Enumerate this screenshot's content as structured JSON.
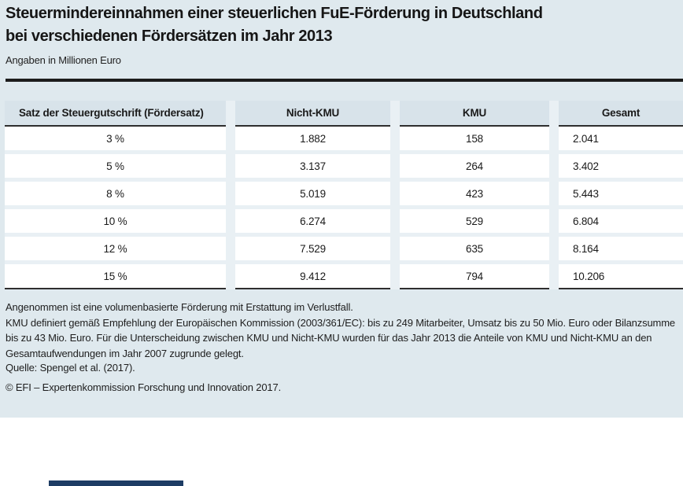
{
  "title": {
    "line1": "Steuermindereinnahmen einer steuerlichen FuE-Förderung in Deutschland",
    "line2": "bei verschiedenen Fördersätzen im Jahr 2013"
  },
  "subtitle": "Angaben in Millionen Euro",
  "chart_data": {
    "type": "table",
    "title": "Steuermindereinnahmen einer steuerlichen FuE-Förderung in Deutschland bei verschiedenen Fördersätzen im Jahr 2013",
    "subtitle": "Angaben in Millionen Euro",
    "units": "Millionen Euro",
    "columns": [
      "Satz der Steuergutschrift (Fördersatz)",
      "Nicht-KMU",
      "KMU",
      "Gesamt"
    ],
    "rows": [
      [
        "3 %",
        "1.882",
        "158",
        "2.041"
      ],
      [
        "5 %",
        "3.137",
        "264",
        "3.402"
      ],
      [
        "8 %",
        "5.019",
        "423",
        "5.443"
      ],
      [
        "10 %",
        "6.274",
        "529",
        "6.804"
      ],
      [
        "12 %",
        "7.529",
        "635",
        "8.164"
      ],
      [
        "15 %",
        "9.412",
        "794",
        "10.206"
      ]
    ],
    "numeric_values": {
      "foerdersatz_prozent": [
        3,
        5,
        8,
        10,
        12,
        15
      ],
      "nicht_kmu": [
        1882,
        3137,
        5019,
        6274,
        7529,
        9412
      ],
      "kmu": [
        158,
        264,
        423,
        529,
        635,
        794
      ],
      "gesamt": [
        2041,
        3402,
        5443,
        6804,
        8164,
        10206
      ]
    }
  },
  "footnotes": {
    "note1": "Angenommen ist eine volumenbasierte Förderung mit Erstattung im Verlustfall.",
    "note2": "KMU definiert gemäß Empfehlung der Europäischen Kommission (2003/361/EC): bis zu 249 Mitarbeiter, Umsatz bis zu 50 Mio. Euro oder Bilanzsumme bis zu 43 Mio. Euro. Für die Unterscheidung zwischen KMU und Nicht-KMU wurden für das Jahr 2013 die Anteile von KMU und Nicht-KMU an den Gesamtaufwendungen im Jahr 2007 zugrunde gelegt.",
    "source": "Quelle: Spengel et al. (2017).",
    "copyright": "© EFI – Expertenkommission Forschung und Innovation 2017."
  },
  "colors": {
    "figure_background": "#dfe9ee",
    "header_cell_background": "#d8e3ea",
    "column_gap": "#e9f0f4",
    "cell_background": "#ffffff",
    "rule_dark": "#1c1c1c",
    "accent_navy_bar": "#1d3c64"
  }
}
